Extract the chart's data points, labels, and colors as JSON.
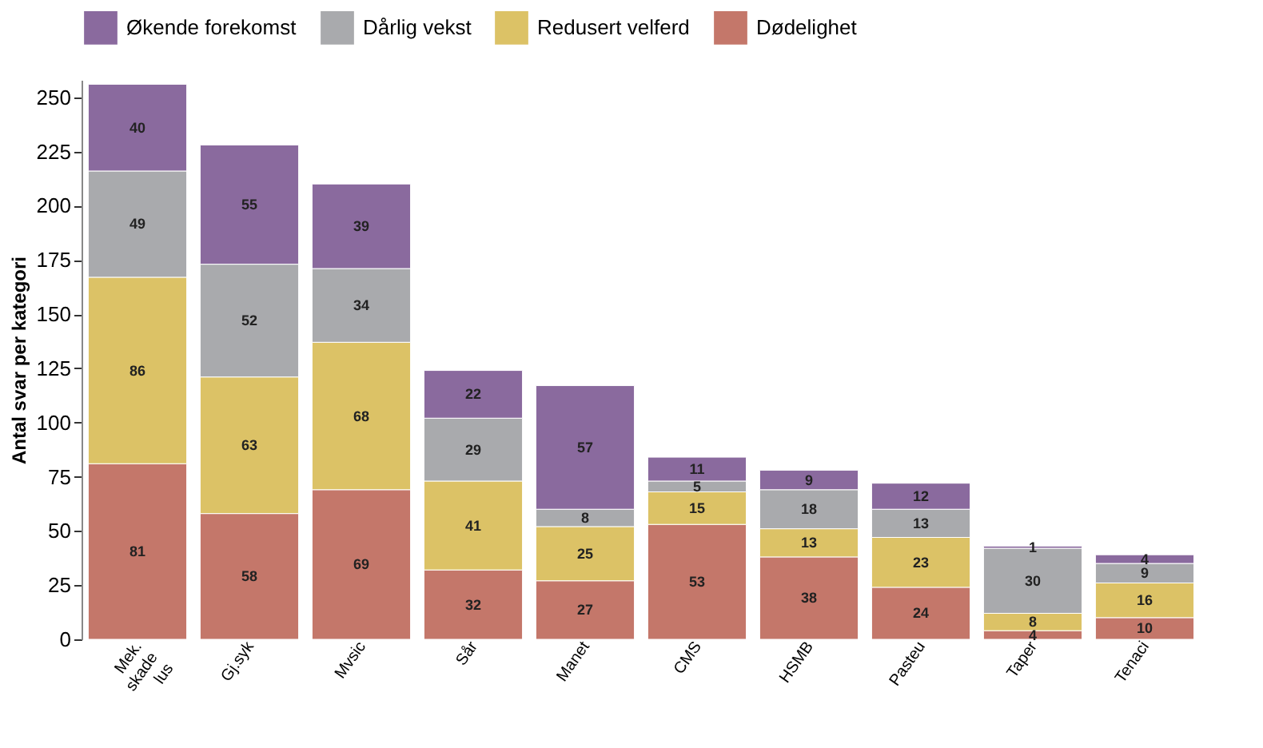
{
  "chart_data": {
    "type": "bar",
    "stacked": true,
    "ylabel": "Antal svar per kategori",
    "categories": [
      "Mek. skade lus",
      "Gj.syk",
      "Mvsic",
      "Sår",
      "Manet",
      "CMS",
      "HSMB",
      "Pasteu",
      "Taper",
      "Tenaci"
    ],
    "series": [
      {
        "name": "Dødelighet",
        "color": "#c4776a",
        "values": [
          81,
          58,
          69,
          32,
          27,
          53,
          38,
          24,
          4,
          10
        ]
      },
      {
        "name": "Redusert velferd",
        "color": "#dcc266",
        "values": [
          86,
          63,
          68,
          41,
          25,
          15,
          13,
          23,
          8,
          16
        ]
      },
      {
        "name": "Dårlig vekst",
        "color": "#a9aaad",
        "values": [
          49,
          52,
          34,
          29,
          8,
          5,
          18,
          13,
          30,
          9
        ]
      },
      {
        "name": "Økende forekomst",
        "color": "#8a6a9e",
        "values": [
          40,
          55,
          39,
          22,
          57,
          11,
          9,
          12,
          1,
          4
        ]
      }
    ],
    "ylim": [
      0,
      258
    ],
    "yticks": [
      0,
      25,
      50,
      75,
      100,
      125,
      150,
      175,
      200,
      225,
      250
    ],
    "grid": false,
    "legend": "top",
    "data_labels": true
  }
}
